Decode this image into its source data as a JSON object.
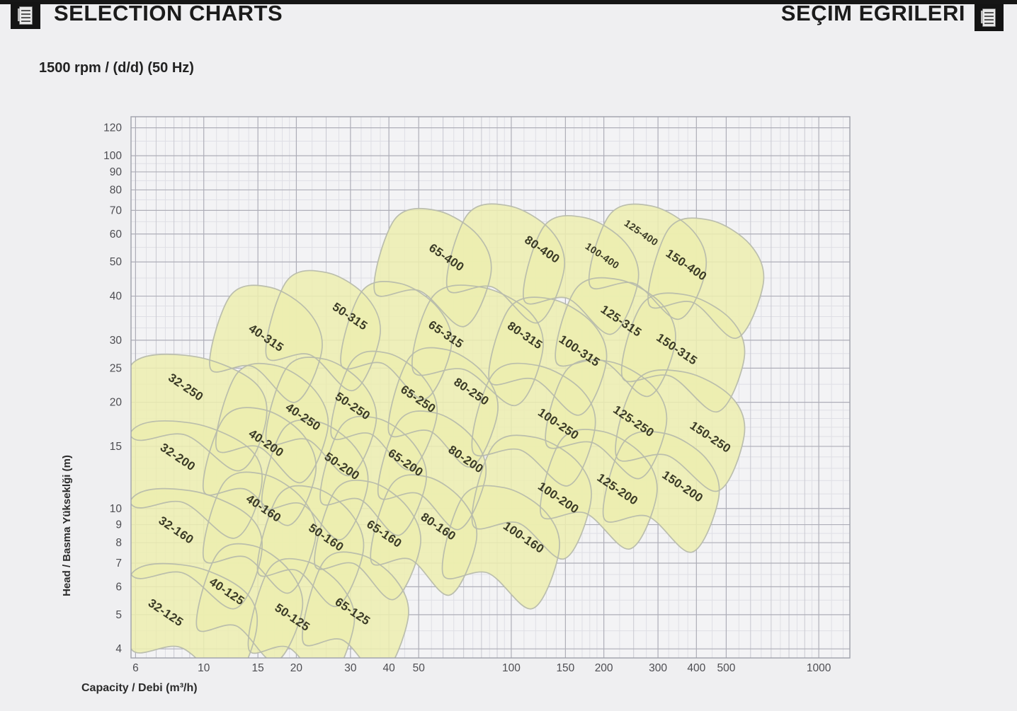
{
  "header": {
    "title_left": "SELECTION CHARTS",
    "title_right": "SEÇIM EGRILERI",
    "subtitle": "1500 rpm / (d/d) (50 Hz)",
    "left_icon": "document-icon",
    "right_icon": "document-icon"
  },
  "colors": {
    "page_bg": "#efeff1",
    "plot_bg": "#f3f3f5",
    "grid_minor": "#dfdfe5",
    "grid_mid": "#c9c9d1",
    "grid_major": "#aeaeb8",
    "plot_border": "#9fa0aa",
    "region_fill": "#eceeb0",
    "region_stroke": "#b7bbab",
    "region_label": "#3a3a26",
    "tick_label": "#4d4d52"
  },
  "chart_data": {
    "type": "area",
    "title": "Pump selection chart 1500 rpm 50 Hz",
    "xlabel": "Capacity / Debi (m³/h)",
    "ylabel": "Head / Basma Yükseklği (m)",
    "x_scale": "log",
    "y_scale": "log",
    "xlim": [
      5.8,
      1262
    ],
    "ylim": [
      3.77,
      129
    ],
    "x_ticks": [
      6,
      10,
      15,
      20,
      30,
      40,
      50,
      100,
      150,
      200,
      300,
      400,
      500,
      1000
    ],
    "y_ticks": [
      120,
      100,
      90,
      80,
      70,
      60,
      50,
      40,
      30,
      25,
      20,
      15,
      10,
      9,
      8,
      7,
      6,
      5,
      4
    ],
    "grid": true,
    "label_rotation_deg": 34,
    "regions": [
      {
        "label": "32-125",
        "q": [
          5.8,
          13.5
        ],
        "h": [
          4.0,
          6.5
        ],
        "label_at": [
          7.4,
          4.96
        ]
      },
      {
        "label": "40-125",
        "q": [
          9.5,
          19
        ],
        "h": [
          4.6,
          7.4
        ],
        "label_at": [
          11.7,
          5.7
        ]
      },
      {
        "label": "50-125",
        "q": [
          14,
          28
        ],
        "h": [
          4.0,
          6.7
        ],
        "label_at": [
          19.1,
          4.81
        ]
      },
      {
        "label": "65-125",
        "q": [
          21,
          42
        ],
        "h": [
          4.2,
          7.0
        ],
        "label_at": [
          30.0,
          5.0
        ]
      },
      {
        "label": "32-160",
        "q": [
          5.8,
          14
        ],
        "h": [
          6.5,
          10.6
        ],
        "label_at": [
          8.0,
          8.5
        ]
      },
      {
        "label": "40-160",
        "q": [
          10,
          21
        ],
        "h": [
          7.2,
          11.8
        ],
        "label_at": [
          15.4,
          9.8
        ]
      },
      {
        "label": "50-160",
        "q": [
          15,
          30
        ],
        "h": [
          6.6,
          10.8
        ],
        "label_at": [
          24.6,
          8.1
        ]
      },
      {
        "label": "65-160",
        "q": [
          23,
          46
        ],
        "h": [
          6.9,
          11.2
        ],
        "label_at": [
          38,
          8.3
        ]
      },
      {
        "label": "80-160",
        "q": [
          35,
          70
        ],
        "h": [
          7.1,
          11.6
        ],
        "label_at": [
          57,
          8.7
        ]
      },
      {
        "label": "100-160",
        "q": [
          60,
          130
        ],
        "h": [
          6.5,
          10.8
        ],
        "label_at": [
          108,
          8.1
        ]
      },
      {
        "label": "32-200",
        "q": [
          5.8,
          14
        ],
        "h": [
          10.3,
          16.5
        ],
        "label_at": [
          8.1,
          13.7
        ]
      },
      {
        "label": "40-200",
        "q": [
          10,
          21
        ],
        "h": [
          11.2,
          18.0
        ],
        "label_at": [
          15.7,
          15.0
        ]
      },
      {
        "label": "50-200",
        "q": [
          15.5,
          31
        ],
        "h": [
          10.2,
          16.6
        ],
        "label_at": [
          27.7,
          12.9
        ]
      },
      {
        "label": "65-200",
        "q": [
          24,
          48
        ],
        "h": [
          10.5,
          17.0
        ],
        "label_at": [
          44.6,
          13.2
        ]
      },
      {
        "label": "80-200",
        "q": [
          37,
          75
        ],
        "h": [
          10.9,
          17.6
        ],
        "label_at": [
          70,
          13.5
        ]
      },
      {
        "label": "100-200",
        "q": [
          75,
          165
        ],
        "h": [
          9.0,
          15.0
        ],
        "label_at": [
          140,
          10.5
        ]
      },
      {
        "label": "125-200",
        "q": [
          125,
          270
        ],
        "h": [
          9.6,
          15.6
        ],
        "label_at": [
          218,
          11.1
        ]
      },
      {
        "label": "150-200",
        "q": [
          200,
          430
        ],
        "h": [
          9.4,
          15.4
        ],
        "label_at": [
          355,
          11.3
        ]
      },
      {
        "label": "32-250",
        "q": [
          5.8,
          14.5
        ],
        "h": [
          16.0,
          25.5
        ],
        "label_at": [
          8.6,
          21.6
        ]
      },
      {
        "label": "40-250",
        "q": [
          11,
          23
        ],
        "h": [
          14.8,
          24.0
        ],
        "label_at": [
          20.7,
          17.8
        ]
      },
      {
        "label": "50-250",
        "q": [
          16,
          33
        ],
        "h": [
          15.5,
          25.0
        ],
        "label_at": [
          30,
          19.1
        ]
      },
      {
        "label": "65-250",
        "q": [
          26,
          52
        ],
        "h": [
          16.1,
          26.0
        ],
        "label_at": [
          49,
          20.0
        ]
      },
      {
        "label": "80-250",
        "q": [
          40,
          82
        ],
        "h": [
          16.4,
          26.6
        ],
        "label_at": [
          73,
          21.0
        ]
      },
      {
        "label": "100-250",
        "q": [
          75,
          170
        ],
        "h": [
          14.5,
          24.0
        ],
        "label_at": [
          140,
          17.0
        ]
      },
      {
        "label": "125-250",
        "q": [
          130,
          290
        ],
        "h": [
          15.2,
          24.6
        ],
        "label_at": [
          246,
          17.3
        ]
      },
      {
        "label": "150-250",
        "q": [
          220,
          520
        ],
        "h": [
          14.0,
          23.0
        ],
        "label_at": [
          437,
          15.6
        ]
      },
      {
        "label": "40-315",
        "q": [
          10.5,
          22
        ],
        "h": [
          25,
          40
        ],
        "label_at": [
          15.7,
          29.8
        ]
      },
      {
        "label": "50-315",
        "q": [
          16,
          34
        ],
        "h": [
          27,
          44
        ],
        "label_at": [
          29.4,
          34.3
        ]
      },
      {
        "label": "65-315",
        "q": [
          28,
          58
        ],
        "h": [
          25.5,
          41
        ],
        "label_at": [
          60.3,
          30.5
        ]
      },
      {
        "label": "80-315",
        "q": [
          48,
          115
        ],
        "h": [
          24.5,
          40
        ],
        "label_at": [
          109,
          30.3
        ]
      },
      {
        "label": "100-315",
        "q": [
          85,
          185
        ],
        "h": [
          23,
          37
        ],
        "label_at": [
          164,
          27.4
        ]
      },
      {
        "label": "125-315",
        "q": [
          140,
          310
        ],
        "h": [
          26,
          42
        ],
        "label_at": [
          224,
          33.3
        ]
      },
      {
        "label": "150-315",
        "q": [
          230,
          520
        ],
        "h": [
          23.5,
          38
        ],
        "label_at": [
          340,
          27.7
        ]
      },
      {
        "label": "65-400",
        "q": [
          36,
          78
        ],
        "h": [
          41,
          66
        ],
        "label_at": [
          60.6,
          50.4
        ]
      },
      {
        "label": "80-400",
        "q": [
          62,
          135
        ],
        "h": [
          42,
          68
        ],
        "label_at": [
          124,
          53.1
        ]
      },
      {
        "label": "100-400",
        "q": [
          110,
          235
        ],
        "h": [
          39,
          63
        ],
        "label_at": [
          195,
          51.1
        ],
        "size": 14
      },
      {
        "label": "125-400",
        "q": [
          180,
          390
        ],
        "h": [
          43,
          68
        ],
        "label_at": [
          261,
          59.4
        ],
        "size": 14
      },
      {
        "label": "150-400",
        "q": [
          280,
          600
        ],
        "h": [
          38,
          62
        ],
        "label_at": [
          365,
          48.0
        ]
      }
    ]
  }
}
